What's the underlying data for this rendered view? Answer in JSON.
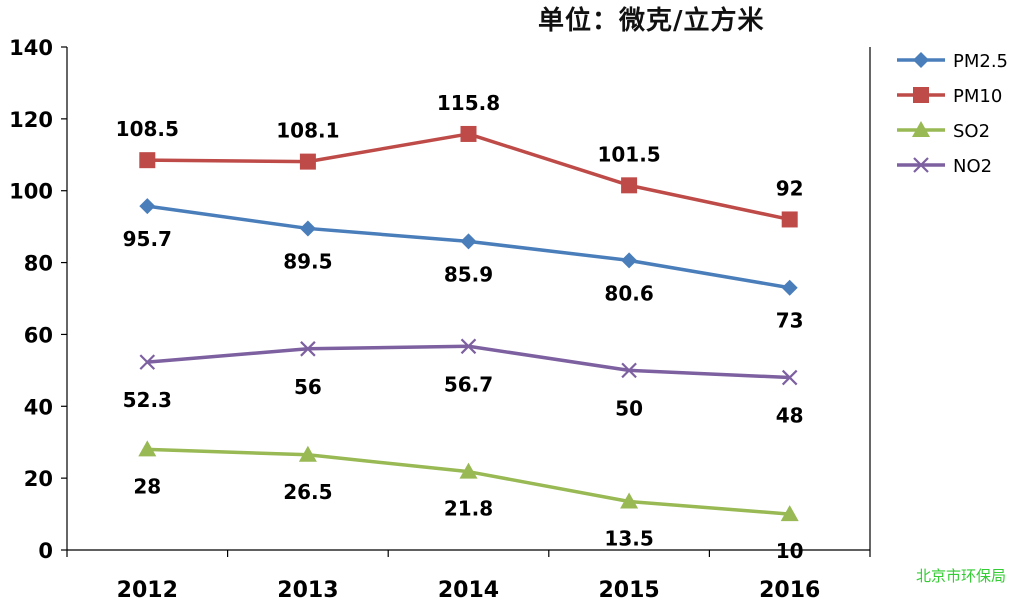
{
  "unit_label": "单位：微克/立方米",
  "watermark": "北京市环保局",
  "colors": {
    "PM2.5": "#4a7ebb",
    "PM10": "#be4b48",
    "SO2": "#98b954",
    "NO2": "#7d60a0",
    "axis": "#000000"
  },
  "chart_data": {
    "type": "line",
    "title": "",
    "xlabel": "",
    "ylabel": "",
    "categories": [
      "2012",
      "2013",
      "2014",
      "2015",
      "2016"
    ],
    "ylim": [
      0,
      140
    ],
    "yticks": [
      "0",
      "20",
      "40",
      "60",
      "80",
      "100",
      "120",
      "140"
    ],
    "grid": false,
    "legend_position": "right",
    "series": [
      {
        "name": "PM2.5",
        "marker": "diamond",
        "values": [
          95.7,
          89.5,
          85.9,
          80.6,
          73
        ],
        "labels": [
          "95.7",
          "89.5",
          "85.9",
          "80.6",
          "73"
        ]
      },
      {
        "name": "PM10",
        "marker": "square",
        "values": [
          108.5,
          108.1,
          115.8,
          101.5,
          92
        ],
        "labels": [
          "108.5",
          "108.1",
          "115.8",
          "101.5",
          "92"
        ]
      },
      {
        "name": "SO2",
        "marker": "triangle",
        "values": [
          28,
          26.5,
          21.8,
          13.5,
          10
        ],
        "labels": [
          "28",
          "26.5",
          "21.8",
          "13.5",
          "10"
        ]
      },
      {
        "name": "NO2",
        "marker": "x",
        "values": [
          52.3,
          56,
          56.7,
          50,
          48
        ],
        "labels": [
          "52.3",
          "56",
          "56.7",
          "50",
          "48"
        ]
      }
    ]
  }
}
